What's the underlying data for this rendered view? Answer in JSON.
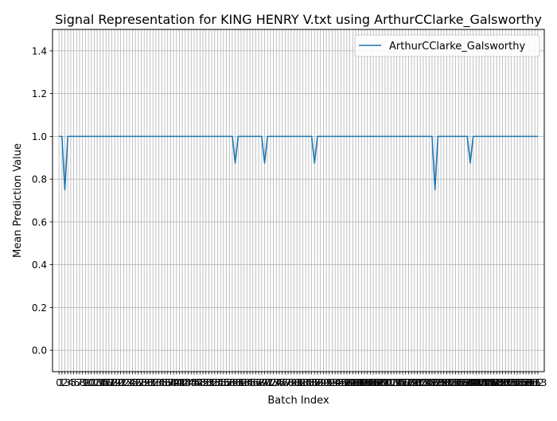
{
  "chart_data": {
    "type": "line",
    "title": "Signal Representation for KING HENRY V.txt using ArthurCClarke_Galsworthy",
    "xlabel": "Batch Index",
    "ylabel": "Mean Prediction Value",
    "xlim": [
      -2.2,
      165.2
    ],
    "ylim": [
      -0.1,
      1.5
    ],
    "x_tick_count": 164,
    "y_ticks": [
      "0.0",
      "0.2",
      "0.4",
      "0.6",
      "0.8",
      "1.0",
      "1.2",
      "1.4"
    ],
    "y_tick_values": [
      0.0,
      0.2,
      0.4,
      0.6,
      0.8,
      1.0,
      1.2,
      1.4
    ],
    "grid": true,
    "legend_position": "top-right",
    "line_color": "#1f77b4",
    "series": [
      {
        "name": "ArthurCClarke_Galsworthy",
        "default_value": 1.0,
        "dips": [
          {
            "x": 2,
            "y": 0.75
          },
          {
            "x": 60,
            "y": 0.875
          },
          {
            "x": 70,
            "y": 0.875
          },
          {
            "x": 87,
            "y": 0.875
          },
          {
            "x": 128,
            "y": 0.75
          },
          {
            "x": 140,
            "y": 0.875
          }
        ]
      }
    ]
  }
}
